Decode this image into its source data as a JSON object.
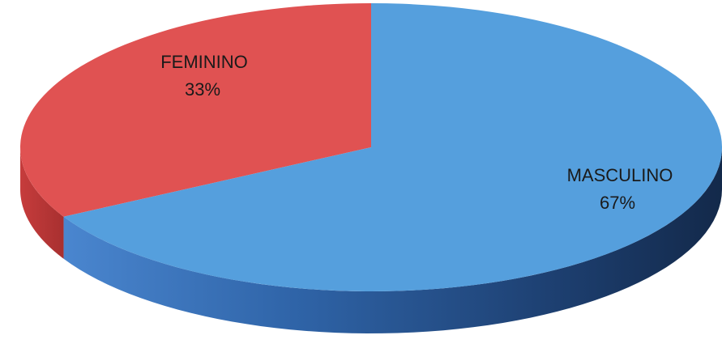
{
  "chart_data": {
    "type": "pie",
    "style": "3d",
    "title": "",
    "slices": [
      {
        "label": "FEMININO",
        "value": 33,
        "value_label": "33%",
        "color": "#e05252"
      },
      {
        "label": "MASCULINO",
        "value": 67,
        "value_label": "67%",
        "color": "#559fdd"
      }
    ],
    "legend": "none"
  }
}
